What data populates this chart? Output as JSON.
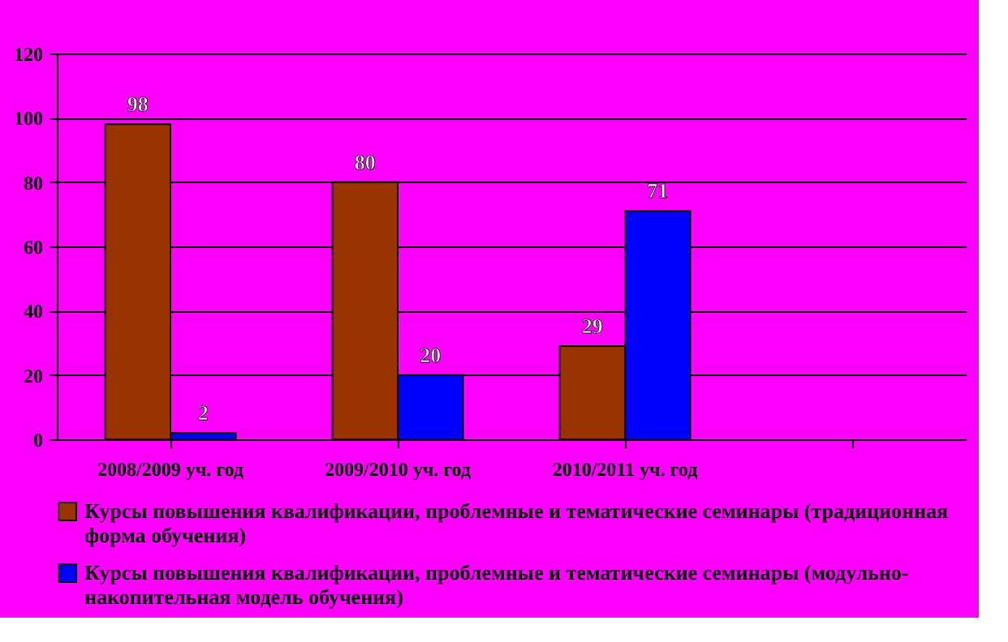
{
  "chart_data": {
    "type": "bar",
    "categories": [
      "2008/2009 уч. год",
      "2009/2010 уч. год",
      "2010/2011 уч. год",
      null
    ],
    "series": [
      {
        "name": "Курсы повышения квалификации, проблемные и тематические семинары (традиционная форма обучения)",
        "color": "#993300",
        "values": [
          98,
          80,
          29,
          null
        ]
      },
      {
        "name": "Курсы повышения квалификации, проблемные и тематические семинары (модульно-накопительная модель обучения)",
        "color": "#0000ff",
        "values": [
          2,
          20,
          71,
          null
        ]
      }
    ],
    "ylim": [
      0,
      120
    ],
    "yticks": [
      0,
      20,
      40,
      60,
      80,
      100,
      120
    ],
    "grid": "y",
    "legend": "bottom",
    "data_labels": true
  }
}
